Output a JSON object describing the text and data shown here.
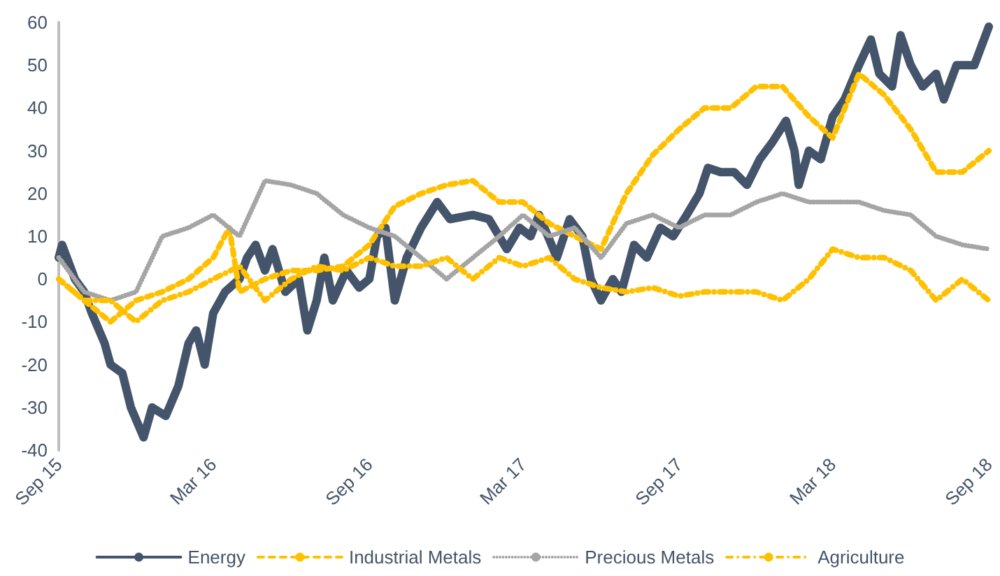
{
  "chart_data": {
    "type": "line",
    "xlim": [
      "2015-09-01",
      "2018-09-01"
    ],
    "xticks": [
      {
        "value": "2015-09-01",
        "label": "Sep 15"
      },
      {
        "value": "2016-03-01",
        "label": "Mar 16"
      },
      {
        "value": "2016-09-01",
        "label": "Sep 16"
      },
      {
        "value": "2017-03-01",
        "label": "Mar 17"
      },
      {
        "value": "2017-09-01",
        "label": "Sep 17"
      },
      {
        "value": "2018-03-01",
        "label": "Mar 18"
      },
      {
        "value": "2018-09-01",
        "label": "Sep 18"
      }
    ],
    "ylim": [
      -40,
      60
    ],
    "yticks": [
      -40,
      -30,
      -20,
      -10,
      0,
      10,
      20,
      30,
      40,
      50,
      60
    ],
    "grid": false,
    "legend": "bottom",
    "marker": "none",
    "series": [
      {
        "name": "Energy",
        "color": "#44546a",
        "line_style": "solid",
        "x": [
          "2015-09-01",
          "2015-09-05",
          "2015-09-20",
          "2015-10-01",
          "2015-10-10",
          "2015-10-25",
          "2015-11-01",
          "2015-11-15",
          "2015-11-25",
          "2015-12-10",
          "2015-12-20",
          "2016-01-05",
          "2016-01-20",
          "2016-02-01",
          "2016-02-10",
          "2016-02-20",
          "2016-03-01",
          "2016-03-15",
          "2016-04-01",
          "2016-04-10",
          "2016-04-20",
          "2016-05-01",
          "2016-05-10",
          "2016-05-25",
          "2016-06-10",
          "2016-06-20",
          "2016-07-01",
          "2016-07-10",
          "2016-07-20",
          "2016-08-05",
          "2016-08-20",
          "2016-09-01",
          "2016-09-10",
          "2016-09-20",
          "2016-10-01",
          "2016-10-15",
          "2016-11-01",
          "2016-11-20",
          "2016-12-05",
          "2017-01-01",
          "2017-01-20",
          "2017-02-10",
          "2017-02-25",
          "2017-03-10",
          "2017-03-20",
          "2017-04-10",
          "2017-04-25",
          "2017-05-10",
          "2017-05-20",
          "2017-06-01",
          "2017-06-15",
          "2017-06-25",
          "2017-07-10",
          "2017-07-25",
          "2017-08-10",
          "2017-08-25",
          "2017-09-10",
          "2017-09-25",
          "2017-10-05",
          "2017-10-20",
          "2017-11-05",
          "2017-11-20",
          "2017-12-05",
          "2017-12-20",
          "2018-01-05",
          "2018-01-15",
          "2018-01-20",
          "2018-02-01",
          "2018-02-15",
          "2018-03-01",
          "2018-03-15",
          "2018-04-01",
          "2018-04-15",
          "2018-04-25",
          "2018-05-10",
          "2018-05-20",
          "2018-06-01",
          "2018-06-15",
          "2018-07-01",
          "2018-07-10",
          "2018-07-25",
          "2018-08-15",
          "2018-09-01"
        ],
        "values": [
          5,
          8,
          0,
          -3,
          -8,
          -15,
          -20,
          -22,
          -30,
          -37,
          -30,
          -32,
          -25,
          -15,
          -12,
          -20,
          -8,
          -3,
          0,
          5,
          8,
          2,
          7,
          -3,
          0,
          -12,
          -5,
          5,
          -5,
          2,
          -2,
          0,
          10,
          12,
          -5,
          5,
          12,
          18,
          14,
          15,
          14,
          7,
          12,
          10,
          15,
          5,
          14,
          10,
          0,
          -5,
          0,
          -3,
          8,
          5,
          12,
          10,
          15,
          20,
          26,
          25,
          25,
          22,
          28,
          32,
          37,
          30,
          22,
          30,
          28,
          38,
          42,
          50,
          56,
          48,
          45,
          57,
          50,
          45,
          48,
          42,
          50,
          50,
          59
        ]
      },
      {
        "name": "Industrial Metals",
        "color": "#ffc000",
        "line_style": "dashed",
        "x": [
          "2015-09-01",
          "2015-10-01",
          "2015-11-01",
          "2015-12-01",
          "2016-01-01",
          "2016-02-01",
          "2016-03-01",
          "2016-03-20",
          "2016-04-01",
          "2016-05-01",
          "2016-06-01",
          "2016-07-01",
          "2016-08-01",
          "2016-09-01",
          "2016-10-01",
          "2016-11-01",
          "2016-12-01",
          "2017-01-01",
          "2017-02-01",
          "2017-03-01",
          "2017-04-01",
          "2017-05-01",
          "2017-06-01",
          "2017-07-01",
          "2017-08-01",
          "2017-09-01",
          "2017-10-01",
          "2017-11-01",
          "2017-12-01",
          "2018-01-01",
          "2018-02-01",
          "2018-03-01",
          "2018-04-01",
          "2018-05-01",
          "2018-06-01",
          "2018-07-01",
          "2018-08-01",
          "2018-09-01"
        ],
        "values": [
          0,
          -5,
          -10,
          -5,
          -3,
          0,
          5,
          12,
          -3,
          0,
          2,
          2,
          3,
          8,
          17,
          20,
          22,
          23,
          18,
          18,
          13,
          10,
          7,
          20,
          29,
          35,
          40,
          40,
          45,
          45,
          38,
          33,
          48,
          43,
          35,
          25,
          25,
          30
        ]
      },
      {
        "name": "Precious Metals",
        "color": "#a5a5a5",
        "line_style": "dotted",
        "x": [
          "2015-09-01",
          "2015-10-01",
          "2015-11-01",
          "2015-12-01",
          "2016-01-01",
          "2016-02-01",
          "2016-03-01",
          "2016-04-01",
          "2016-05-01",
          "2016-06-01",
          "2016-07-01",
          "2016-08-01",
          "2016-09-01",
          "2016-10-01",
          "2016-11-01",
          "2016-12-01",
          "2017-01-01",
          "2017-02-01",
          "2017-03-01",
          "2017-04-01",
          "2017-05-01",
          "2017-06-01",
          "2017-07-01",
          "2017-08-01",
          "2017-09-01",
          "2017-10-01",
          "2017-11-01",
          "2017-12-01",
          "2018-01-01",
          "2018-02-01",
          "2018-03-01",
          "2018-04-01",
          "2018-05-01",
          "2018-06-01",
          "2018-07-01",
          "2018-08-01",
          "2018-09-01"
        ],
        "values": [
          5,
          -3,
          -5,
          -3,
          10,
          12,
          15,
          10,
          23,
          22,
          20,
          15,
          12,
          10,
          5,
          0,
          5,
          10,
          15,
          10,
          12,
          5,
          13,
          15,
          12,
          15,
          15,
          18,
          20,
          18,
          18,
          18,
          16,
          15,
          10,
          8,
          7
        ]
      },
      {
        "name": "Agriculture",
        "color": "#ffc000",
        "line_style": "dashdot",
        "x": [
          "2015-09-01",
          "2015-10-01",
          "2015-11-01",
          "2015-12-01",
          "2016-01-01",
          "2016-02-01",
          "2016-03-01",
          "2016-04-01",
          "2016-05-01",
          "2016-06-01",
          "2016-07-01",
          "2016-08-01",
          "2016-09-01",
          "2016-10-01",
          "2016-11-01",
          "2016-12-01",
          "2017-01-01",
          "2017-02-01",
          "2017-03-01",
          "2017-04-01",
          "2017-05-01",
          "2017-06-01",
          "2017-07-01",
          "2017-08-01",
          "2017-09-01",
          "2017-10-01",
          "2017-11-01",
          "2017-12-01",
          "2018-01-01",
          "2018-02-01",
          "2018-03-01",
          "2018-04-01",
          "2018-05-01",
          "2018-06-01",
          "2018-07-01",
          "2018-08-01",
          "2018-09-01"
        ],
        "values": [
          0,
          -5,
          -5,
          -10,
          -5,
          -3,
          0,
          3,
          -5,
          0,
          3,
          2,
          5,
          3,
          3,
          5,
          0,
          5,
          3,
          5,
          0,
          -2,
          -3,
          -2,
          -4,
          -3,
          -3,
          -3,
          -5,
          0,
          7,
          5,
          5,
          2,
          -5,
          0,
          -5
        ]
      }
    ]
  }
}
